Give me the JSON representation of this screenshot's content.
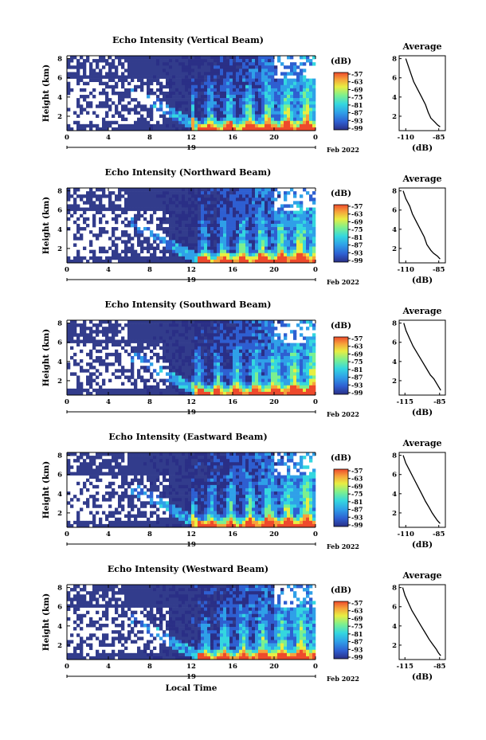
{
  "chart_data": [
    {
      "type": "heatmap",
      "title": "Echo Intensity (Vertical Beam)",
      "ylabel": "Height (km)",
      "yticks": [
        "2",
        "4",
        "6",
        "8"
      ],
      "ylim": [
        0.5,
        8.3
      ],
      "xticks": [
        "0",
        "4",
        "8",
        "12",
        "16",
        "20",
        "0"
      ],
      "xlim": [
        0,
        24
      ],
      "day": "19",
      "date_label": "Feb 2022",
      "colorbar": {
        "label": "(dB)",
        "ticks": [
          "-57",
          "-63",
          "-69",
          "-75",
          "-81",
          "-87",
          "-93",
          "-99"
        ]
      },
      "average_profile": {
        "title": "Average",
        "xlabel": "(dB)",
        "xticks": [
          "-110",
          "-85"
        ],
        "yticks": [
          "2",
          "4",
          "6",
          "8"
        ],
        "xlim": [
          -115,
          -80
        ],
        "ylim": [
          0.5,
          8.3
        ],
        "points": [
          [
            -110,
            8.0
          ],
          [
            -108,
            7.2
          ],
          [
            -106,
            6.4
          ],
          [
            -104,
            5.6
          ],
          [
            -101,
            4.8
          ],
          [
            -98,
            4.0
          ],
          [
            -95,
            3.2
          ],
          [
            -93,
            2.4
          ],
          [
            -91,
            1.8
          ],
          [
            -88,
            1.4
          ],
          [
            -86,
            1.1
          ],
          [
            -84,
            0.9
          ]
        ]
      }
    },
    {
      "type": "heatmap",
      "title": "Echo Intensity (Northward Beam)",
      "ylabel": "Height (km)",
      "yticks": [
        "2",
        "4",
        "6",
        "8"
      ],
      "ylim": [
        0.5,
        8.3
      ],
      "xticks": [
        "0",
        "4",
        "8",
        "12",
        "16",
        "20",
        "0"
      ],
      "xlim": [
        0,
        24
      ],
      "day": "19",
      "date_label": "Feb 2022",
      "colorbar": {
        "label": "(dB)",
        "ticks": [
          "-57",
          "-63",
          "-69",
          "-75",
          "-81",
          "-87",
          "-93",
          "-99"
        ]
      },
      "average_profile": {
        "title": "Average",
        "xlabel": "(dB)",
        "xticks": [
          "-110",
          "-85"
        ],
        "yticks": [
          "2",
          "4",
          "6",
          "8"
        ],
        "xlim": [
          -115,
          -80
        ],
        "ylim": [
          0.5,
          8.3
        ],
        "points": [
          [
            -112,
            8.0
          ],
          [
            -110,
            7.2
          ],
          [
            -107,
            6.4
          ],
          [
            -105,
            5.6
          ],
          [
            -102,
            4.8
          ],
          [
            -99,
            4.0
          ],
          [
            -96,
            3.2
          ],
          [
            -94,
            2.4
          ],
          [
            -91,
            1.8
          ],
          [
            -89,
            1.5
          ],
          [
            -86,
            1.2
          ],
          [
            -84,
            0.9
          ]
        ]
      }
    },
    {
      "type": "heatmap",
      "title": "Echo Intensity (Southward Beam)",
      "ylabel": "Height (km)",
      "yticks": [
        "2",
        "4",
        "6",
        "8"
      ],
      "ylim": [
        0.5,
        8.3
      ],
      "xticks": [
        "0",
        "4",
        "8",
        "12",
        "16",
        "20",
        "0"
      ],
      "xlim": [
        0,
        24
      ],
      "day": "19",
      "date_label": "Feb 2022",
      "colorbar": {
        "label": "(dB)",
        "ticks": [
          "-57",
          "-63",
          "-69",
          "-75",
          "-81",
          "-87",
          "-93",
          "-99"
        ]
      },
      "average_profile": {
        "title": "Average",
        "xlabel": "(dB)",
        "xticks": [
          "-115",
          "-85"
        ],
        "yticks": [
          "2",
          "4",
          "6",
          "8"
        ],
        "xlim": [
          -120,
          -80
        ],
        "ylim": [
          0.5,
          8.3
        ],
        "points": [
          [
            -116,
            8.0
          ],
          [
            -114,
            7.2
          ],
          [
            -111,
            6.4
          ],
          [
            -108,
            5.6
          ],
          [
            -104,
            4.8
          ],
          [
            -100,
            4.0
          ],
          [
            -96,
            3.2
          ],
          [
            -93,
            2.6
          ],
          [
            -90,
            2.2
          ],
          [
            -88,
            1.8
          ],
          [
            -86,
            1.4
          ],
          [
            -84,
            1.0
          ]
        ]
      }
    },
    {
      "type": "heatmap",
      "title": "Echo Intensity (Eastward Beam)",
      "ylabel": "Height (km)",
      "yticks": [
        "2",
        "4",
        "6",
        "8"
      ],
      "ylim": [
        0.5,
        8.3
      ],
      "xticks": [
        "0",
        "4",
        "8",
        "12",
        "16",
        "20",
        "0"
      ],
      "xlim": [
        0,
        24
      ],
      "day": "19",
      "date_label": "Feb 2022",
      "colorbar": {
        "label": "(dB)",
        "ticks": [
          "-57",
          "-63",
          "-69",
          "-75",
          "-81",
          "-87",
          "-93",
          "-99"
        ]
      },
      "average_profile": {
        "title": "Average",
        "xlabel": "(dB)",
        "xticks": [
          "-110",
          "-85"
        ],
        "yticks": [
          "2",
          "4",
          "6",
          "8"
        ],
        "xlim": [
          -115,
          -80
        ],
        "ylim": [
          0.5,
          8.3
        ],
        "points": [
          [
            -112,
            8.0
          ],
          [
            -110,
            7.2
          ],
          [
            -107,
            6.4
          ],
          [
            -104,
            5.6
          ],
          [
            -101,
            4.8
          ],
          [
            -98,
            4.0
          ],
          [
            -95,
            3.2
          ],
          [
            -92,
            2.5
          ],
          [
            -90,
            2.0
          ],
          [
            -88,
            1.6
          ],
          [
            -86,
            1.2
          ],
          [
            -84,
            0.9
          ]
        ]
      }
    },
    {
      "type": "heatmap",
      "title": "Echo Intensity (Westward Beam)",
      "ylabel": "Height (km)",
      "yticks": [
        "2",
        "4",
        "6",
        "8"
      ],
      "ylim": [
        0.5,
        8.3
      ],
      "xticks": [
        "0",
        "4",
        "8",
        "12",
        "16",
        "20",
        "0"
      ],
      "xlim": [
        0,
        24
      ],
      "day": "19",
      "date_label": "Feb 2022",
      "xlabel": "Local Time",
      "colorbar": {
        "label": "(dB)",
        "ticks": [
          "-57",
          "-63",
          "-69",
          "-75",
          "-81",
          "-87",
          "-93",
          "-99"
        ]
      },
      "average_profile": {
        "title": "Average",
        "xlabel": "(dB)",
        "xticks": [
          "-115",
          "-85"
        ],
        "yticks": [
          "2",
          "4",
          "6",
          "8"
        ],
        "xlim": [
          -120,
          -80
        ],
        "ylim": [
          0.5,
          8.3
        ],
        "points": [
          [
            -117,
            8.0
          ],
          [
            -115,
            7.2
          ],
          [
            -112,
            6.4
          ],
          [
            -109,
            5.6
          ],
          [
            -105,
            4.8
          ],
          [
            -101,
            4.0
          ],
          [
            -97,
            3.2
          ],
          [
            -94,
            2.6
          ],
          [
            -91,
            2.1
          ],
          [
            -88,
            1.6
          ],
          [
            -86,
            1.2
          ],
          [
            -84,
            0.9
          ]
        ]
      }
    }
  ],
  "colors": {
    "background_echo": "#323c8c",
    "colormap": [
      "#2a2f86",
      "#2e5fd1",
      "#2fa0e8",
      "#34d7df",
      "#7cf08f",
      "#e8ee42",
      "#f6a23a",
      "#ee4a2c"
    ]
  }
}
